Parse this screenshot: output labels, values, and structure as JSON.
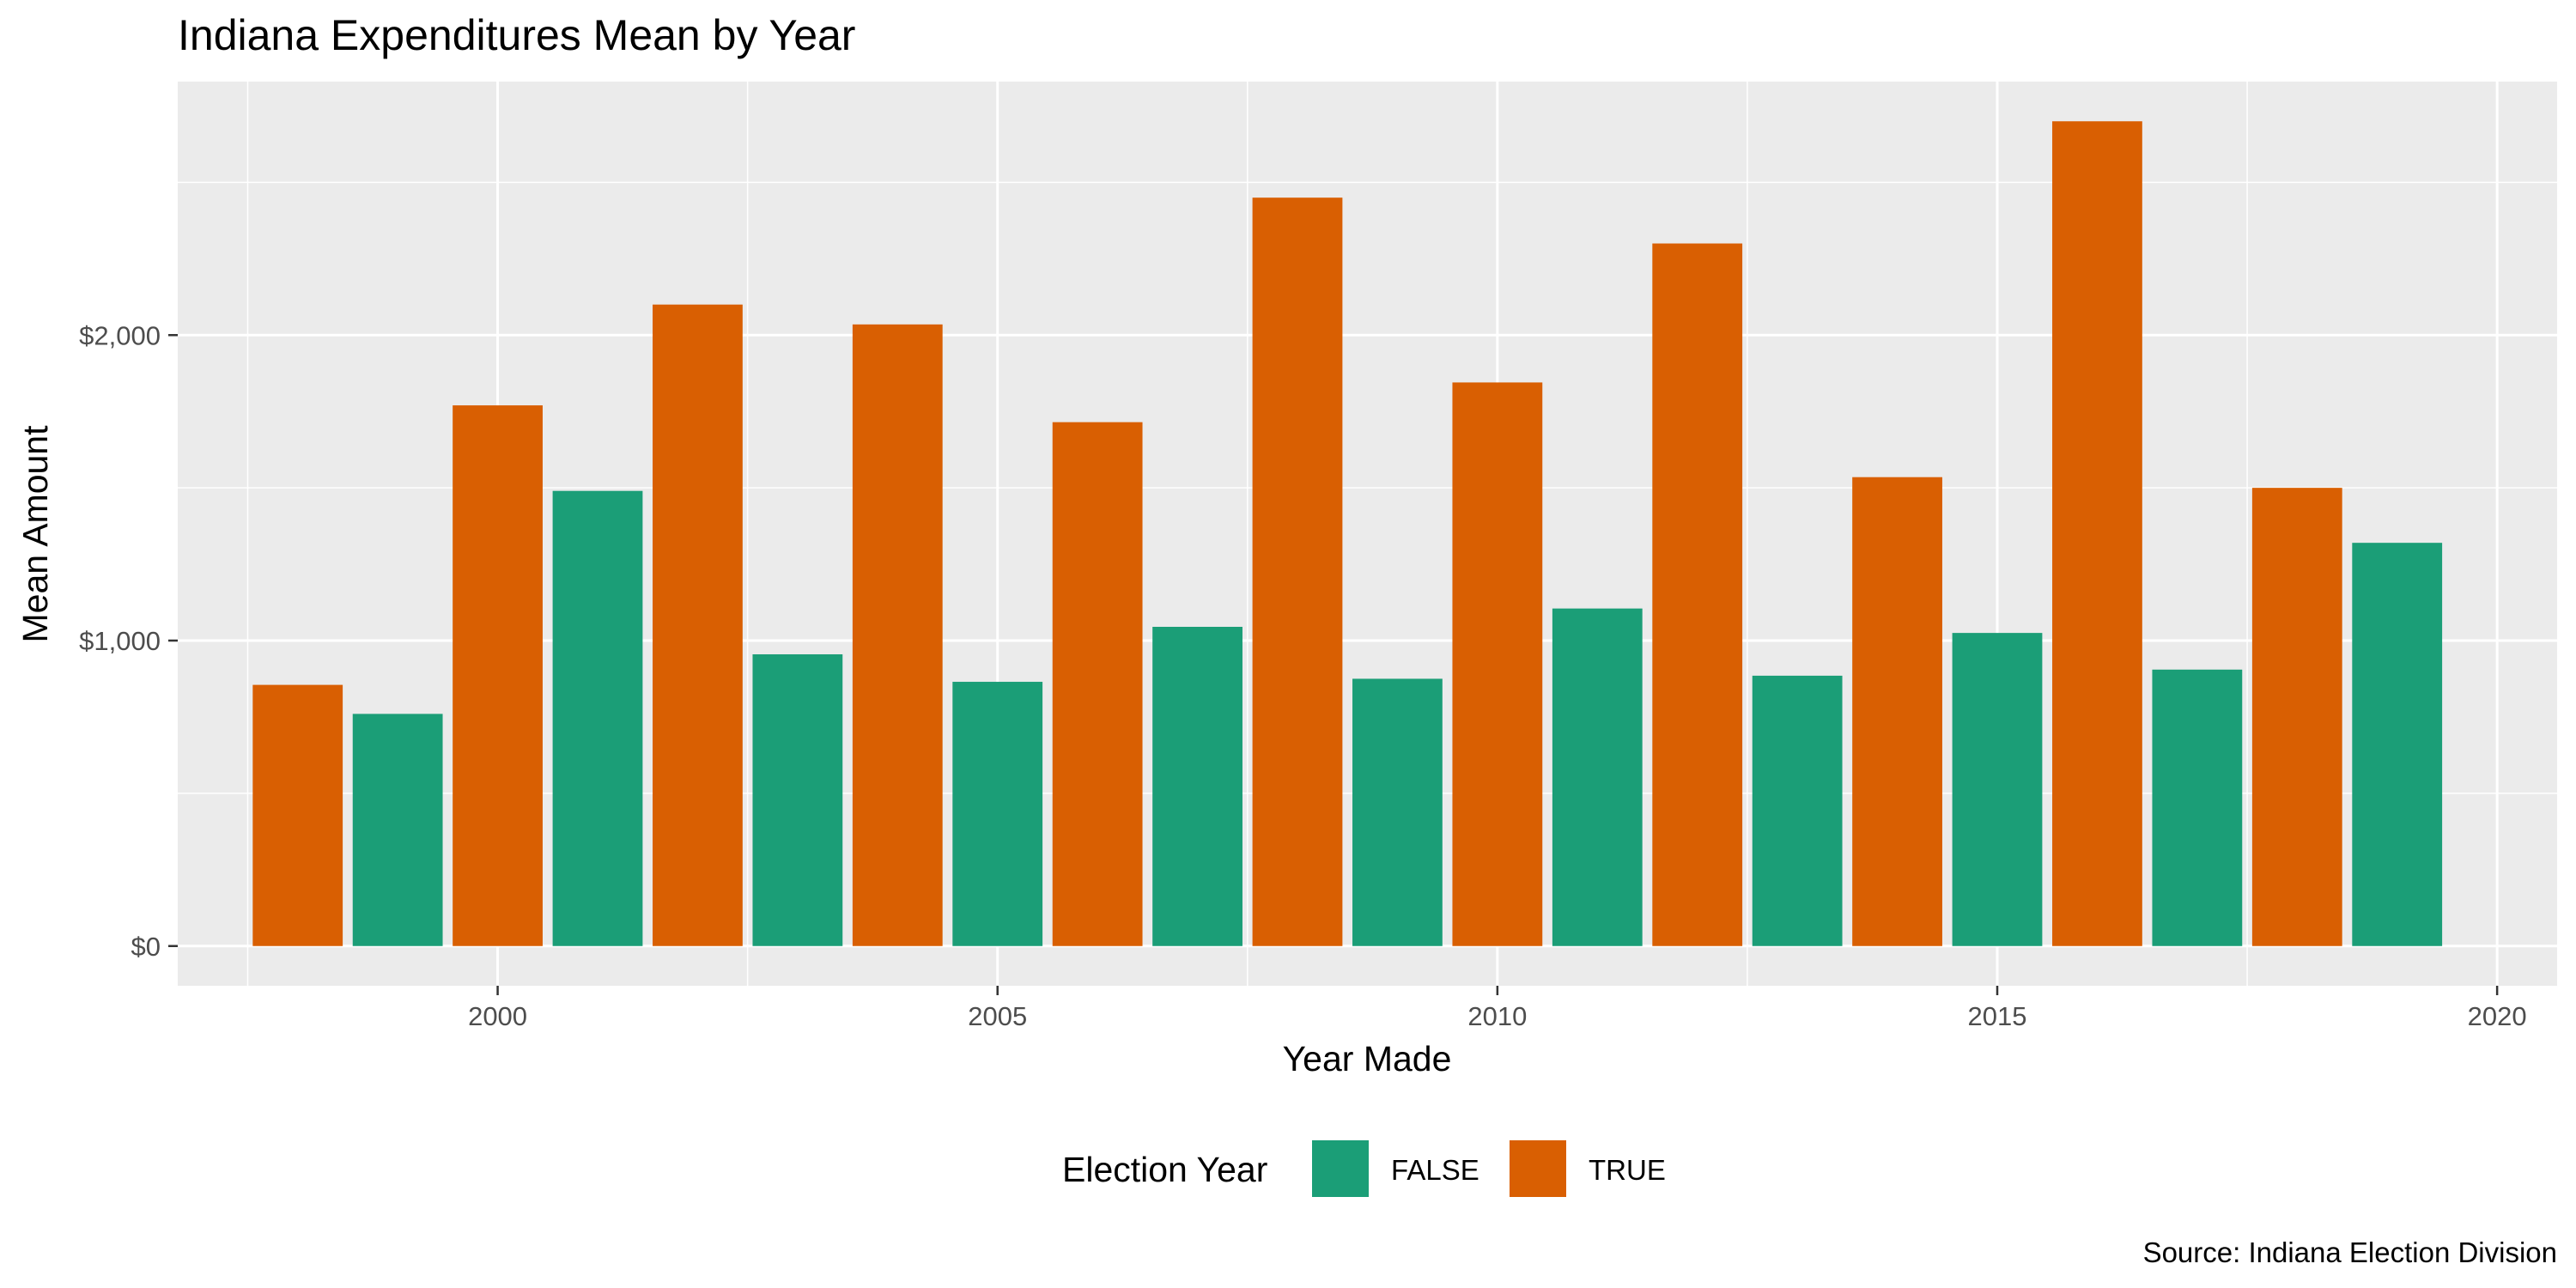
{
  "chart_data": {
    "type": "bar",
    "title": "Indiana Expenditures Mean by Year",
    "xlabel": "Year Made",
    "ylabel": "Mean Amount",
    "caption": "Source: Indiana Election Division",
    "x_ticks": [
      2000,
      2005,
      2010,
      2015,
      2020
    ],
    "y_ticks": [
      0,
      1000,
      2000
    ],
    "y_tick_labels": [
      "$0",
      "$1,000",
      "$2,000"
    ],
    "xlim": [
      1996.8,
      2020.6
    ],
    "ylim": [
      -130,
      2830
    ],
    "grid": true,
    "legend": {
      "title": "Election Year",
      "position": "bottom",
      "entries": [
        {
          "label": "FALSE",
          "color": "#1B9E77"
        },
        {
          "label": "TRUE",
          "color": "#D95F02"
        }
      ]
    },
    "colors": {
      "FALSE": "#1B9E77",
      "TRUE": "#D95F02",
      "panel": "#EBEBEB",
      "grid": "#FFFFFF"
    },
    "bars": [
      {
        "year": 1998,
        "election_year": "TRUE",
        "value": 855
      },
      {
        "year": 1999,
        "election_year": "FALSE",
        "value": 760
      },
      {
        "year": 2000,
        "election_year": "TRUE",
        "value": 1770
      },
      {
        "year": 2001,
        "election_year": "FALSE",
        "value": 1490
      },
      {
        "year": 2002,
        "election_year": "TRUE",
        "value": 2100
      },
      {
        "year": 2003,
        "election_year": "FALSE",
        "value": 955
      },
      {
        "year": 2004,
        "election_year": "TRUE",
        "value": 2035
      },
      {
        "year": 2005,
        "election_year": "FALSE",
        "value": 865
      },
      {
        "year": 2006,
        "election_year": "TRUE",
        "value": 1715
      },
      {
        "year": 2007,
        "election_year": "FALSE",
        "value": 1045
      },
      {
        "year": 2008,
        "election_year": "TRUE",
        "value": 2450
      },
      {
        "year": 2009,
        "election_year": "FALSE",
        "value": 875
      },
      {
        "year": 2010,
        "election_year": "TRUE",
        "value": 1845
      },
      {
        "year": 2011,
        "election_year": "FALSE",
        "value": 1105
      },
      {
        "year": 2012,
        "election_year": "TRUE",
        "value": 2300
      },
      {
        "year": 2013,
        "election_year": "FALSE",
        "value": 885
      },
      {
        "year": 2014,
        "election_year": "TRUE",
        "value": 1535
      },
      {
        "year": 2015,
        "election_year": "FALSE",
        "value": 1025
      },
      {
        "year": 2016,
        "election_year": "TRUE",
        "value": 2700
      },
      {
        "year": 2017,
        "election_year": "FALSE",
        "value": 905
      },
      {
        "year": 2018,
        "election_year": "TRUE",
        "value": 1500
      },
      {
        "year": 2019,
        "election_year": "FALSE",
        "value": 1320
      }
    ]
  }
}
